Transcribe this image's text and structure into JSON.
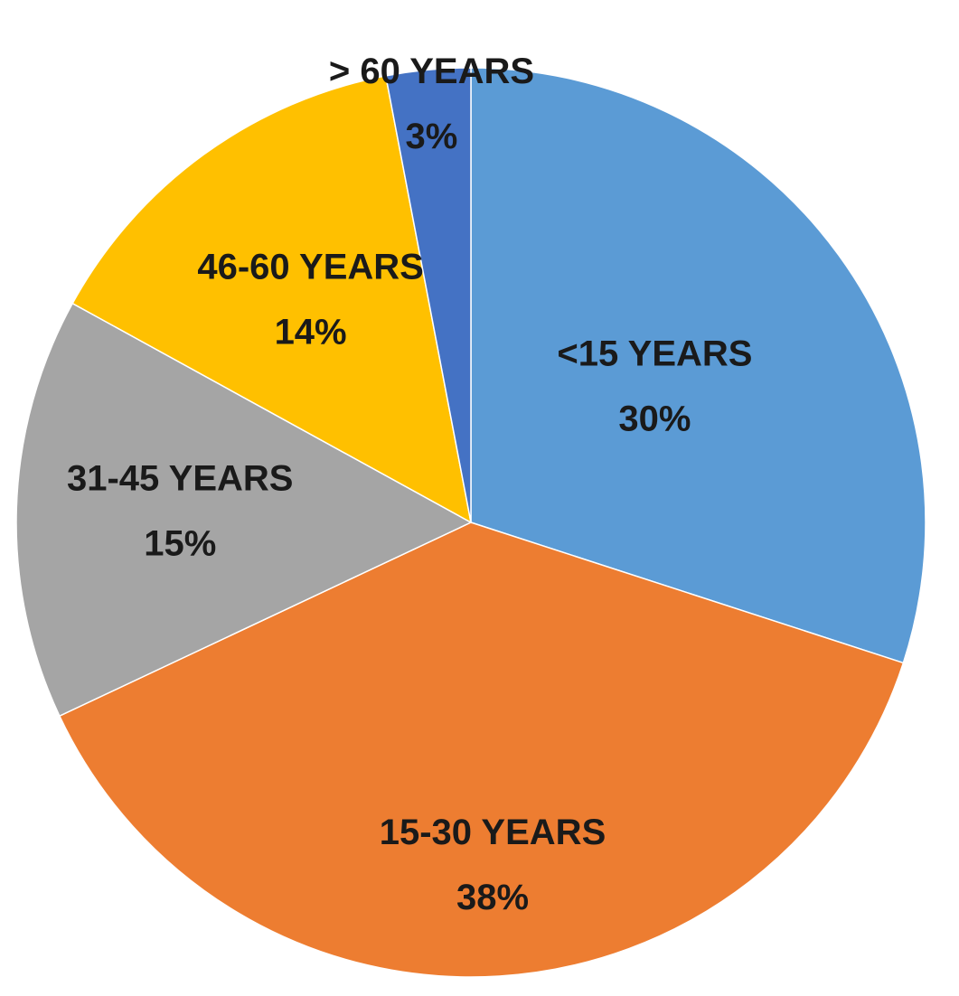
{
  "chart_data": {
    "type": "pie",
    "categories": [
      "<15 YEARS",
      "15-30 YEARS",
      "31-45 YEARS",
      "46-60 YEARS",
      "> 60 YEARS"
    ],
    "values": [
      30,
      38,
      15,
      14,
      3
    ],
    "value_labels": [
      "30%",
      "38%",
      "15%",
      "14%",
      "3%"
    ],
    "colors": [
      "#5b9bd5",
      "#ed7d31",
      "#a5a5a5",
      "#ffc000",
      "#4472c4"
    ]
  }
}
